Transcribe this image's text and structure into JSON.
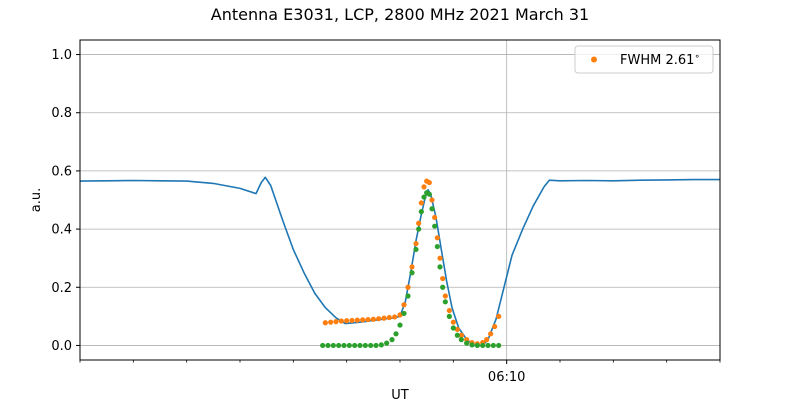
{
  "chart_data": {
    "type": "line",
    "title": "Antenna E3031, LCP, 2800 MHz 2021 March 31",
    "xlabel": "UT",
    "ylabel": "a.u.",
    "ylim": [
      -0.05,
      1.05
    ],
    "xlim": [
      0.0,
      24.0
    ],
    "x_unit_note": "minutes after 05:54 UT",
    "x_ticks": [
      {
        "x": 16.0,
        "label": "06:10"
      }
    ],
    "x_minor_ticks": [
      0,
      2,
      4,
      6,
      8,
      10,
      12,
      14,
      18,
      20,
      22,
      24
    ],
    "y_ticks": [
      0.0,
      0.2,
      0.4,
      0.6,
      0.8,
      1.0
    ],
    "y_tick_labels": [
      "0.0",
      "0.2",
      "0.4",
      "0.6",
      "0.8",
      "1.0"
    ],
    "grid": true,
    "legend_placement": "top-right",
    "colors": {
      "measured": "#1f77b4",
      "fwhm_points": "#ff7f0e",
      "fit_points": "#2ca02c",
      "grid": "#b0b0b0"
    },
    "series": [
      {
        "kind": "line",
        "points": [
          [
            0.0,
            0.565
          ],
          [
            1.0,
            0.566
          ],
          [
            2.0,
            0.567
          ],
          [
            3.0,
            0.566
          ],
          [
            4.0,
            0.565
          ],
          [
            5.0,
            0.557
          ],
          [
            6.0,
            0.54
          ],
          [
            6.6,
            0.522
          ],
          [
            6.8,
            0.56
          ],
          [
            6.95,
            0.578
          ],
          [
            7.15,
            0.55
          ],
          [
            7.6,
            0.43
          ],
          [
            8.0,
            0.33
          ],
          [
            8.4,
            0.25
          ],
          [
            8.8,
            0.18
          ],
          [
            9.2,
            0.13
          ],
          [
            9.6,
            0.095
          ],
          [
            9.95,
            0.075
          ],
          [
            10.5,
            0.08
          ],
          [
            11.0,
            0.086
          ],
          [
            11.5,
            0.092
          ],
          [
            11.8,
            0.095
          ],
          [
            12.0,
            0.1
          ],
          [
            12.2,
            0.15
          ],
          [
            12.4,
            0.25
          ],
          [
            12.6,
            0.36
          ],
          [
            12.8,
            0.45
          ],
          [
            12.95,
            0.51
          ],
          [
            13.05,
            0.535
          ],
          [
            13.15,
            0.52
          ],
          [
            13.35,
            0.44
          ],
          [
            13.55,
            0.33
          ],
          [
            13.75,
            0.22
          ],
          [
            13.95,
            0.13
          ],
          [
            14.2,
            0.06
          ],
          [
            14.5,
            0.02
          ],
          [
            14.8,
            0.0
          ],
          [
            15.1,
            0.0
          ],
          [
            15.3,
            0.02
          ],
          [
            15.6,
            0.09
          ],
          [
            15.9,
            0.2
          ],
          [
            16.2,
            0.31
          ],
          [
            16.6,
            0.4
          ],
          [
            17.0,
            0.48
          ],
          [
            17.4,
            0.545
          ],
          [
            17.6,
            0.568
          ],
          [
            18.0,
            0.566
          ],
          [
            19.0,
            0.567
          ],
          [
            20.0,
            0.566
          ],
          [
            21.0,
            0.568
          ],
          [
            22.0,
            0.569
          ],
          [
            23.0,
            0.57
          ],
          [
            24.0,
            0.57
          ]
        ]
      },
      {
        "kind": "points",
        "name": "FWHM 2.61$^\\circ$",
        "points": [
          [
            9.2,
            0.078
          ],
          [
            9.4,
            0.08
          ],
          [
            9.6,
            0.082
          ],
          [
            9.8,
            0.084
          ],
          [
            10.0,
            0.085
          ],
          [
            10.2,
            0.086
          ],
          [
            10.4,
            0.087
          ],
          [
            10.6,
            0.088
          ],
          [
            10.8,
            0.089
          ],
          [
            11.0,
            0.09
          ],
          [
            11.2,
            0.092
          ],
          [
            11.4,
            0.094
          ],
          [
            11.6,
            0.096
          ],
          [
            11.8,
            0.098
          ],
          [
            12.0,
            0.105
          ],
          [
            12.15,
            0.14
          ],
          [
            12.3,
            0.2
          ],
          [
            12.45,
            0.27
          ],
          [
            12.6,
            0.35
          ],
          [
            12.7,
            0.42
          ],
          [
            12.8,
            0.49
          ],
          [
            12.9,
            0.545
          ],
          [
            13.0,
            0.565
          ],
          [
            13.1,
            0.56
          ],
          [
            13.2,
            0.5
          ],
          [
            13.3,
            0.44
          ],
          [
            13.4,
            0.37
          ],
          [
            13.5,
            0.3
          ],
          [
            13.6,
            0.23
          ],
          [
            13.7,
            0.17
          ],
          [
            13.85,
            0.12
          ],
          [
            14.0,
            0.08
          ],
          [
            14.15,
            0.055
          ],
          [
            14.3,
            0.035
          ],
          [
            14.5,
            0.02
          ],
          [
            14.7,
            0.01
          ],
          [
            14.9,
            0.006
          ],
          [
            15.1,
            0.01
          ],
          [
            15.25,
            0.02
          ],
          [
            15.4,
            0.04
          ],
          [
            15.55,
            0.065
          ],
          [
            15.7,
            0.1
          ]
        ]
      },
      {
        "kind": "points",
        "points": [
          [
            9.1,
            0.0
          ],
          [
            9.3,
            0.0
          ],
          [
            9.5,
            0.0
          ],
          [
            9.7,
            0.0
          ],
          [
            9.9,
            0.0
          ],
          [
            10.1,
            0.0
          ],
          [
            10.3,
            0.0
          ],
          [
            10.5,
            0.0
          ],
          [
            10.7,
            0.0
          ],
          [
            10.9,
            0.0
          ],
          [
            11.1,
            0.0
          ],
          [
            11.3,
            0.002
          ],
          [
            11.5,
            0.008
          ],
          [
            11.7,
            0.02
          ],
          [
            11.85,
            0.04
          ],
          [
            12.0,
            0.07
          ],
          [
            12.15,
            0.11
          ],
          [
            12.3,
            0.17
          ],
          [
            12.45,
            0.25
          ],
          [
            12.6,
            0.33
          ],
          [
            12.7,
            0.4
          ],
          [
            12.8,
            0.46
          ],
          [
            12.9,
            0.51
          ],
          [
            13.0,
            0.525
          ],
          [
            13.1,
            0.52
          ],
          [
            13.2,
            0.47
          ],
          [
            13.3,
            0.41
          ],
          [
            13.4,
            0.34
          ],
          [
            13.5,
            0.27
          ],
          [
            13.6,
            0.2
          ],
          [
            13.7,
            0.15
          ],
          [
            13.85,
            0.1
          ],
          [
            14.0,
            0.06
          ],
          [
            14.15,
            0.035
          ],
          [
            14.3,
            0.02
          ],
          [
            14.5,
            0.008
          ],
          [
            14.7,
            0.002
          ],
          [
            14.9,
            0.0
          ],
          [
            15.1,
            0.0
          ],
          [
            15.3,
            0.0
          ],
          [
            15.5,
            0.0
          ],
          [
            15.7,
            0.0
          ]
        ]
      }
    ]
  }
}
